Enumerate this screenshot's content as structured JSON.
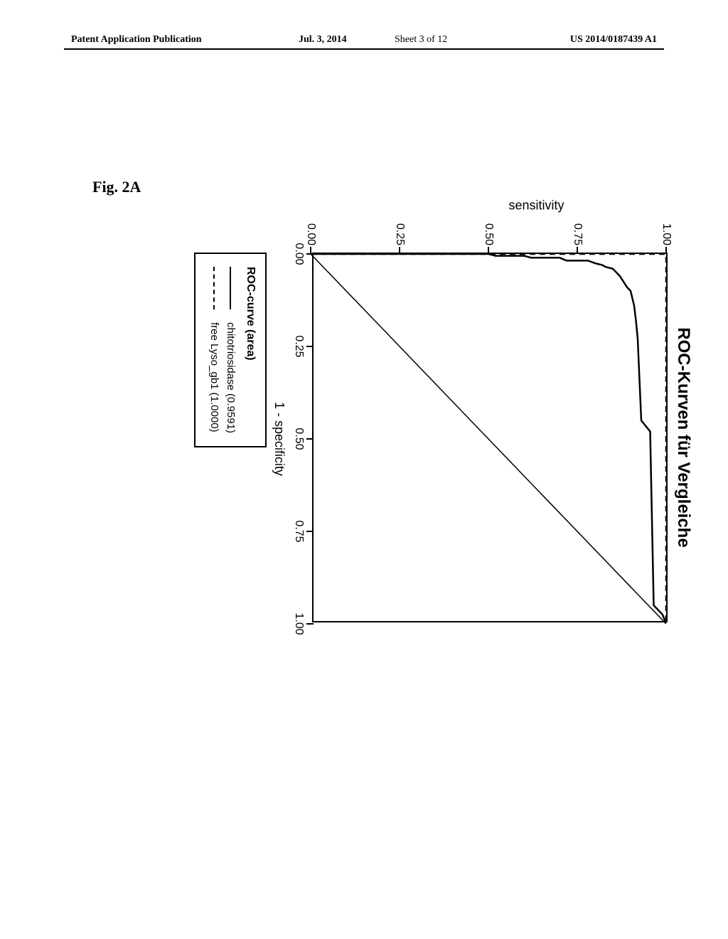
{
  "header": {
    "left": "Patent Application Publication",
    "date": "Jul. 3, 2014",
    "sheet": "Sheet 3 of 12",
    "right": "US 2014/0187439 A1"
  },
  "figure_label": "Fig. 2A",
  "chart": {
    "type": "line",
    "title": "ROC-Kurven für Vergleiche",
    "x_axis_title": "1 - specificity",
    "y_axis_title": "sensitivity",
    "xlim": [
      0,
      1
    ],
    "ylim": [
      0,
      1
    ],
    "x_ticks": [
      0.0,
      0.25,
      0.5,
      0.75,
      1.0
    ],
    "y_ticks": [
      0.0,
      0.25,
      0.5,
      0.75,
      1.0
    ],
    "x_tick_labels": [
      "0.00",
      "0.25",
      "0.50",
      "0.75",
      "1.00"
    ],
    "y_tick_labels": [
      "0.00",
      "0.25",
      "0.50",
      "0.75",
      "1.00"
    ],
    "background_color": "#ffffff",
    "border_color": "#000000",
    "tick_fontsize": 16,
    "axis_title_fontsize": 18,
    "title_fontsize": 24,
    "line_width": 2,
    "diagonal": {
      "x": [
        0,
        1
      ],
      "y": [
        0,
        1
      ],
      "stroke": "#000000",
      "width": 1.5
    },
    "series": [
      {
        "name": "chitotriosidase",
        "auc": 0.9591,
        "style": "solid",
        "stroke": "#000000",
        "points": [
          [
            0.0,
            0.0
          ],
          [
            0.0,
            0.5
          ],
          [
            0.005,
            0.52
          ],
          [
            0.005,
            0.6
          ],
          [
            0.01,
            0.62
          ],
          [
            0.01,
            0.7
          ],
          [
            0.018,
            0.72
          ],
          [
            0.018,
            0.78
          ],
          [
            0.025,
            0.8
          ],
          [
            0.03,
            0.82
          ],
          [
            0.035,
            0.83
          ],
          [
            0.04,
            0.85
          ],
          [
            0.05,
            0.86
          ],
          [
            0.06,
            0.87
          ],
          [
            0.075,
            0.88
          ],
          [
            0.09,
            0.89
          ],
          [
            0.1,
            0.9
          ],
          [
            0.12,
            0.905
          ],
          [
            0.14,
            0.91
          ],
          [
            0.18,
            0.915
          ],
          [
            0.23,
            0.92
          ],
          [
            0.45,
            0.93
          ],
          [
            0.48,
            0.955
          ],
          [
            0.95,
            0.965
          ],
          [
            0.975,
            0.99
          ],
          [
            1.0,
            1.0
          ]
        ]
      },
      {
        "name": "free Lyso_gb1",
        "auc": 1.0,
        "style": "dashed",
        "stroke": "#000000",
        "dash": "8,6",
        "points": [
          [
            0.0,
            0.0
          ],
          [
            0.0,
            1.0
          ],
          [
            1.0,
            1.0
          ]
        ]
      }
    ]
  },
  "legend": {
    "title": "ROC-curve (area)",
    "items": [
      {
        "style": "solid",
        "label": "chitotriosidase (0.9591)"
      },
      {
        "style": "dashed",
        "label": "free Lyso_gb1 (1.0000)"
      }
    ]
  }
}
